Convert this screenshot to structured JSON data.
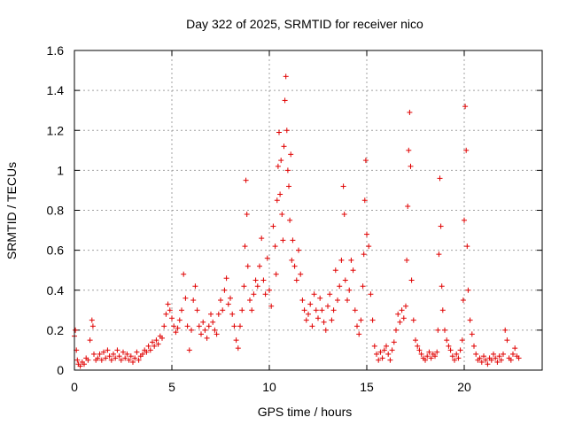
{
  "chart_data": {
    "type": "scatter",
    "title": "Day 322 of 2025, SRMTID for receiver nico",
    "xlabel": "GPS time / hours",
    "ylabel": "SRMTID / TECUs",
    "xlim": [
      0,
      24
    ],
    "ylim": [
      0,
      1.6
    ],
    "xticks": [
      0,
      5,
      10,
      15,
      20
    ],
    "xtick_labels": [
      "0",
      "5",
      "10",
      "15",
      "20"
    ],
    "yticks": [
      0,
      0.2,
      0.4,
      0.6,
      0.8,
      1.0,
      1.2,
      1.4,
      1.6
    ],
    "ytick_labels": [
      "0",
      "0.2",
      "0.4",
      "0.6",
      "0.8",
      "1",
      "1.2",
      "1.4",
      "1.6"
    ],
    "grid": true,
    "marker": "+",
    "color": "#e00000",
    "series": [
      {
        "name": "SRMTID",
        "points": [
          [
            0.0,
            0.17
          ],
          [
            0.05,
            0.2
          ],
          [
            0.1,
            0.1
          ],
          [
            0.15,
            0.05
          ],
          [
            0.2,
            0.03
          ],
          [
            0.3,
            0.02
          ],
          [
            0.4,
            0.04
          ],
          [
            0.5,
            0.03
          ],
          [
            0.6,
            0.06
          ],
          [
            0.7,
            0.05
          ],
          [
            0.8,
            0.15
          ],
          [
            0.9,
            0.25
          ],
          [
            0.95,
            0.22
          ],
          [
            1.0,
            0.08
          ],
          [
            1.1,
            0.05
          ],
          [
            1.2,
            0.06
          ],
          [
            1.3,
            0.08
          ],
          [
            1.4,
            0.05
          ],
          [
            1.5,
            0.09
          ],
          [
            1.6,
            0.06
          ],
          [
            1.7,
            0.1
          ],
          [
            1.8,
            0.07
          ],
          [
            1.9,
            0.05
          ],
          [
            2.0,
            0.08
          ],
          [
            2.1,
            0.06
          ],
          [
            2.2,
            0.1
          ],
          [
            2.3,
            0.07
          ],
          [
            2.4,
            0.05
          ],
          [
            2.5,
            0.09
          ],
          [
            2.6,
            0.06
          ],
          [
            2.7,
            0.08
          ],
          [
            2.8,
            0.05
          ],
          [
            2.9,
            0.07
          ],
          [
            3.0,
            0.04
          ],
          [
            3.1,
            0.06
          ],
          [
            3.2,
            0.09
          ],
          [
            3.3,
            0.05
          ],
          [
            3.4,
            0.07
          ],
          [
            3.5,
            0.08
          ],
          [
            3.6,
            0.1
          ],
          [
            3.7,
            0.09
          ],
          [
            3.8,
            0.12
          ],
          [
            3.9,
            0.1
          ],
          [
            4.0,
            0.14
          ],
          [
            4.1,
            0.12
          ],
          [
            4.2,
            0.15
          ],
          [
            4.3,
            0.13
          ],
          [
            4.4,
            0.17
          ],
          [
            4.5,
            0.16
          ],
          [
            4.6,
            0.22
          ],
          [
            4.7,
            0.28
          ],
          [
            4.8,
            0.33
          ],
          [
            4.9,
            0.3
          ],
          [
            5.0,
            0.26
          ],
          [
            5.1,
            0.22
          ],
          [
            5.2,
            0.19
          ],
          [
            5.3,
            0.21
          ],
          [
            5.4,
            0.25
          ],
          [
            5.5,
            0.3
          ],
          [
            5.6,
            0.48
          ],
          [
            5.7,
            0.36
          ],
          [
            5.8,
            0.22
          ],
          [
            5.9,
            0.1
          ],
          [
            6.0,
            0.2
          ],
          [
            6.1,
            0.35
          ],
          [
            6.2,
            0.42
          ],
          [
            6.3,
            0.3
          ],
          [
            6.4,
            0.22
          ],
          [
            6.5,
            0.18
          ],
          [
            6.6,
            0.24
          ],
          [
            6.7,
            0.2
          ],
          [
            6.8,
            0.16
          ],
          [
            6.9,
            0.22
          ],
          [
            7.0,
            0.28
          ],
          [
            7.1,
            0.24
          ],
          [
            7.2,
            0.2
          ],
          [
            7.3,
            0.18
          ],
          [
            7.4,
            0.28
          ],
          [
            7.5,
            0.35
          ],
          [
            7.6,
            0.3
          ],
          [
            7.7,
            0.4
          ],
          [
            7.8,
            0.46
          ],
          [
            7.9,
            0.33
          ],
          [
            8.0,
            0.36
          ],
          [
            8.1,
            0.28
          ],
          [
            8.2,
            0.22
          ],
          [
            8.3,
            0.15
          ],
          [
            8.4,
            0.11
          ],
          [
            8.5,
            0.22
          ],
          [
            8.6,
            0.3
          ],
          [
            8.7,
            0.42
          ],
          [
            8.75,
            0.62
          ],
          [
            8.8,
            0.95
          ],
          [
            8.85,
            0.78
          ],
          [
            8.9,
            0.52
          ],
          [
            9.0,
            0.35
          ],
          [
            9.1,
            0.3
          ],
          [
            9.2,
            0.38
          ],
          [
            9.3,
            0.45
          ],
          [
            9.4,
            0.42
          ],
          [
            9.5,
            0.52
          ],
          [
            9.6,
            0.66
          ],
          [
            9.7,
            0.45
          ],
          [
            9.8,
            0.38
          ],
          [
            9.9,
            0.56
          ],
          [
            10.0,
            0.4
          ],
          [
            10.1,
            0.32
          ],
          [
            10.2,
            0.72
          ],
          [
            10.3,
            0.62
          ],
          [
            10.35,
            0.48
          ],
          [
            10.4,
            0.85
          ],
          [
            10.45,
            1.02
          ],
          [
            10.5,
            1.19
          ],
          [
            10.55,
            0.88
          ],
          [
            10.6,
            1.05
          ],
          [
            10.65,
            0.78
          ],
          [
            10.7,
            0.65
          ],
          [
            10.75,
            1.12
          ],
          [
            10.8,
            1.35
          ],
          [
            10.85,
            1.47
          ],
          [
            10.9,
            1.2
          ],
          [
            10.95,
            1.0
          ],
          [
            11.0,
            0.92
          ],
          [
            11.05,
            0.75
          ],
          [
            11.1,
            1.08
          ],
          [
            11.15,
            0.55
          ],
          [
            11.2,
            0.65
          ],
          [
            11.3,
            0.52
          ],
          [
            11.4,
            0.45
          ],
          [
            11.5,
            0.6
          ],
          [
            11.6,
            0.48
          ],
          [
            11.7,
            0.35
          ],
          [
            11.8,
            0.3
          ],
          [
            11.9,
            0.25
          ],
          [
            12.0,
            0.28
          ],
          [
            12.1,
            0.33
          ],
          [
            12.2,
            0.22
          ],
          [
            12.3,
            0.38
          ],
          [
            12.4,
            0.3
          ],
          [
            12.5,
            0.26
          ],
          [
            12.6,
            0.36
          ],
          [
            12.7,
            0.3
          ],
          [
            12.8,
            0.24
          ],
          [
            12.9,
            0.2
          ],
          [
            13.0,
            0.32
          ],
          [
            13.1,
            0.38
          ],
          [
            13.2,
            0.25
          ],
          [
            13.3,
            0.3
          ],
          [
            13.4,
            0.5
          ],
          [
            13.5,
            0.35
          ],
          [
            13.6,
            0.42
          ],
          [
            13.7,
            0.55
          ],
          [
            13.8,
            0.92
          ],
          [
            13.85,
            0.78
          ],
          [
            13.9,
            0.45
          ],
          [
            14.0,
            0.35
          ],
          [
            14.1,
            0.4
          ],
          [
            14.2,
            0.55
          ],
          [
            14.3,
            0.5
          ],
          [
            14.4,
            0.3
          ],
          [
            14.5,
            0.22
          ],
          [
            14.6,
            0.18
          ],
          [
            14.7,
            0.25
          ],
          [
            14.8,
            0.42
          ],
          [
            14.85,
            0.58
          ],
          [
            14.9,
            0.85
          ],
          [
            14.95,
            1.05
          ],
          [
            15.0,
            0.68
          ],
          [
            15.1,
            0.62
          ],
          [
            15.2,
            0.38
          ],
          [
            15.3,
            0.25
          ],
          [
            15.4,
            0.12
          ],
          [
            15.5,
            0.08
          ],
          [
            15.6,
            0.05
          ],
          [
            15.7,
            0.09
          ],
          [
            15.8,
            0.06
          ],
          [
            15.9,
            0.1
          ],
          [
            16.0,
            0.12
          ],
          [
            16.1,
            0.08
          ],
          [
            16.2,
            0.05
          ],
          [
            16.3,
            0.1
          ],
          [
            16.4,
            0.14
          ],
          [
            16.5,
            0.2
          ],
          [
            16.6,
            0.28
          ],
          [
            16.7,
            0.24
          ],
          [
            16.8,
            0.3
          ],
          [
            16.9,
            0.26
          ],
          [
            17.0,
            0.32
          ],
          [
            17.05,
            0.55
          ],
          [
            17.1,
            0.82
          ],
          [
            17.15,
            1.1
          ],
          [
            17.2,
            1.29
          ],
          [
            17.25,
            1.02
          ],
          [
            17.3,
            0.45
          ],
          [
            17.4,
            0.25
          ],
          [
            17.5,
            0.15
          ],
          [
            17.6,
            0.12
          ],
          [
            17.7,
            0.1
          ],
          [
            17.8,
            0.08
          ],
          [
            17.9,
            0.06
          ],
          [
            18.0,
            0.05
          ],
          [
            18.1,
            0.07
          ],
          [
            18.2,
            0.09
          ],
          [
            18.3,
            0.06
          ],
          [
            18.4,
            0.08
          ],
          [
            18.5,
            0.07
          ],
          [
            18.6,
            0.09
          ],
          [
            18.65,
            0.2
          ],
          [
            18.7,
            0.58
          ],
          [
            18.75,
            0.96
          ],
          [
            18.8,
            0.72
          ],
          [
            18.85,
            0.42
          ],
          [
            18.9,
            0.3
          ],
          [
            19.0,
            0.2
          ],
          [
            19.1,
            0.15
          ],
          [
            19.2,
            0.12
          ],
          [
            19.3,
            0.1
          ],
          [
            19.4,
            0.07
          ],
          [
            19.5,
            0.05
          ],
          [
            19.6,
            0.08
          ],
          [
            19.7,
            0.06
          ],
          [
            19.8,
            0.1
          ],
          [
            19.9,
            0.15
          ],
          [
            19.95,
            0.35
          ],
          [
            20.0,
            0.75
          ],
          [
            20.05,
            1.32
          ],
          [
            20.1,
            1.1
          ],
          [
            20.15,
            0.62
          ],
          [
            20.2,
            0.4
          ],
          [
            20.3,
            0.25
          ],
          [
            20.4,
            0.18
          ],
          [
            20.5,
            0.12
          ],
          [
            20.6,
            0.08
          ],
          [
            20.7,
            0.05
          ],
          [
            20.8,
            0.06
          ],
          [
            20.9,
            0.04
          ],
          [
            21.0,
            0.07
          ],
          [
            21.1,
            0.05
          ],
          [
            21.2,
            0.03
          ],
          [
            21.3,
            0.06
          ],
          [
            21.4,
            0.05
          ],
          [
            21.5,
            0.08
          ],
          [
            21.6,
            0.06
          ],
          [
            21.7,
            0.04
          ],
          [
            21.8,
            0.07
          ],
          [
            21.9,
            0.05
          ],
          [
            22.0,
            0.08
          ],
          [
            22.1,
            0.2
          ],
          [
            22.2,
            0.15
          ],
          [
            22.3,
            0.06
          ],
          [
            22.4,
            0.05
          ],
          [
            22.5,
            0.08
          ],
          [
            22.6,
            0.11
          ],
          [
            22.7,
            0.07
          ],
          [
            22.8,
            0.06
          ]
        ]
      }
    ]
  }
}
